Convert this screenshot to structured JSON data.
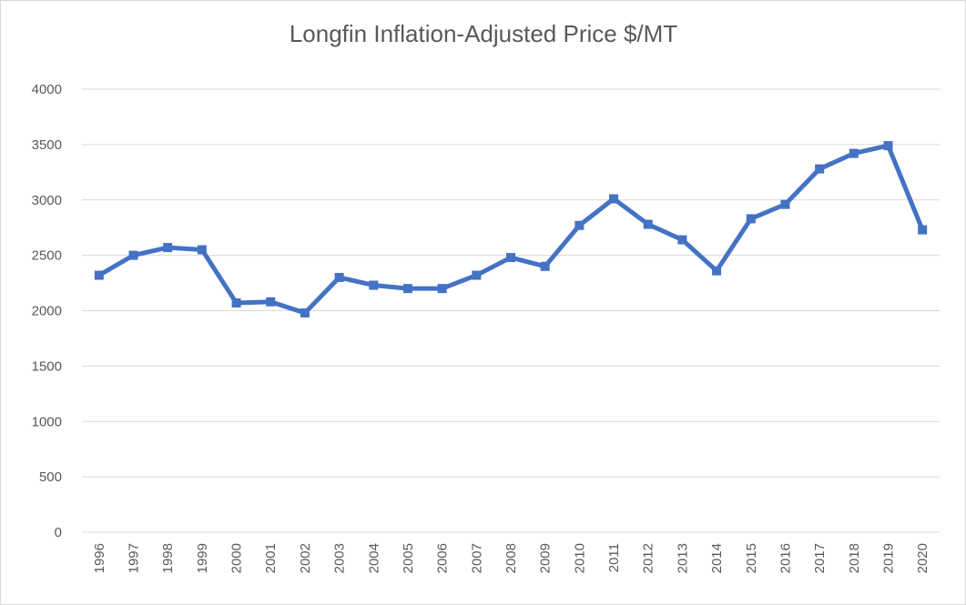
{
  "chart_data": {
    "type": "line",
    "title": "Longfin Inflation-Adjusted Price $/MT",
    "categories": [
      "1996",
      "1997",
      "1998",
      "1999",
      "2000",
      "2001",
      "2002",
      "2003",
      "2004",
      "2005",
      "2006",
      "2007",
      "2008",
      "2009",
      "2010",
      "2011",
      "2012",
      "2013",
      "2014",
      "2015",
      "2016",
      "2017",
      "2018",
      "2019",
      "2020"
    ],
    "values": [
      2320,
      2500,
      2570,
      2550,
      2070,
      2080,
      1980,
      2300,
      2230,
      2200,
      2200,
      2320,
      2480,
      2400,
      2770,
      3010,
      2780,
      2640,
      2360,
      2830,
      2960,
      3280,
      3420,
      3490,
      2730
    ],
    "color": "#4472c4",
    "ylim": [
      0,
      4000
    ],
    "yticks": [
      0,
      500,
      1000,
      1500,
      2000,
      2500,
      3000,
      3500,
      4000
    ],
    "grid": true
  }
}
